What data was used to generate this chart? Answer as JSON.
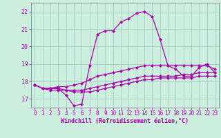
{
  "xlabel": "Windchill (Refroidissement éolien,°C)",
  "background_color": "#cceedd",
  "grid_color": "#aacccc",
  "line_color": "#aa00aa",
  "spine_color": "#886688",
  "xlim": [
    -0.5,
    23.5
  ],
  "ylim": [
    16.5,
    22.5
  ],
  "yticks": [
    17,
    18,
    19,
    20,
    21,
    22
  ],
  "xticks": [
    0,
    1,
    2,
    3,
    4,
    5,
    6,
    7,
    8,
    9,
    10,
    11,
    12,
    13,
    14,
    15,
    16,
    17,
    18,
    19,
    20,
    21,
    22,
    23
  ],
  "series": {
    "windchill": [
      17.8,
      17.6,
      17.6,
      17.6,
      17.2,
      16.6,
      16.7,
      18.9,
      20.7,
      20.9,
      20.9,
      21.4,
      21.6,
      21.9,
      22.0,
      21.7,
      20.4,
      18.9,
      18.7,
      18.3,
      18.3,
      18.8,
      19.0,
      18.5
    ],
    "temp_max": [
      17.8,
      17.6,
      17.6,
      17.7,
      17.7,
      17.8,
      17.9,
      18.1,
      18.3,
      18.4,
      18.5,
      18.6,
      18.7,
      18.8,
      18.9,
      18.9,
      18.9,
      18.9,
      18.9,
      18.9,
      18.9,
      18.9,
      18.9,
      18.7
    ],
    "temp_mid": [
      17.8,
      17.6,
      17.6,
      17.6,
      17.5,
      17.5,
      17.5,
      17.6,
      17.7,
      17.8,
      17.9,
      18.0,
      18.1,
      18.2,
      18.3,
      18.3,
      18.3,
      18.3,
      18.3,
      18.4,
      18.4,
      18.5,
      18.5,
      18.5
    ],
    "temp_min": [
      17.8,
      17.6,
      17.5,
      17.5,
      17.5,
      17.4,
      17.4,
      17.4,
      17.5,
      17.6,
      17.7,
      17.8,
      17.9,
      18.0,
      18.1,
      18.1,
      18.2,
      18.2,
      18.2,
      18.2,
      18.2,
      18.3,
      18.3,
      18.3
    ]
  },
  "marker_size": 2.5,
  "line_width": 0.9,
  "tick_fontsize": 5.5,
  "xlabel_fontsize": 6.0
}
